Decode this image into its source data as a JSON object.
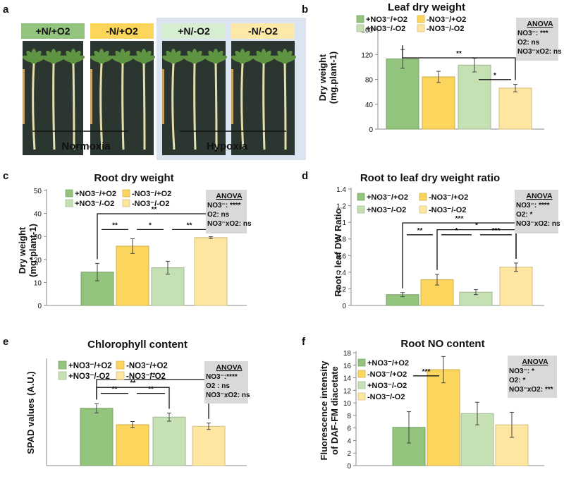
{
  "series_colors": [
    "#92c47d",
    "#fcd55c",
    "#c5e0b3",
    "#fee5a0"
  ],
  "colors": {
    "anova_box": "#d9d9d9",
    "hypoxia_bg": "#dbe4f1",
    "photo_bg": "#2c3630",
    "leaf": "#5f9443",
    "root": "#e3dfaa"
  },
  "panel_a": {
    "letter": "a",
    "labels": [
      "+N/+O2",
      "-N/+O2",
      "+N/-O2",
      "-N/-O2"
    ],
    "label_colors": [
      "#92c47d",
      "#fcd55c",
      "#d5edd0",
      "#fde9a7"
    ],
    "groups": [
      "Normoxia",
      "Hypoxia"
    ]
  },
  "chart_data": [
    {
      "id": "b",
      "letter": "b",
      "type": "bar",
      "title": "Leaf dry weight",
      "ylabel": [
        "Dry weight",
        "(mg.plant-1)"
      ],
      "ylim": [
        0,
        160
      ],
      "yticks": [
        0,
        40,
        80,
        120,
        160
      ],
      "categories": [
        "+NO3-/+O2",
        "-NO3-/+O2",
        "+NO3-/-O2",
        "-NO3-/-O2"
      ],
      "legend": [
        "+NO3⁻/+O2",
        "-NO3⁻/+O2",
        "+NO3⁻/-O2",
        "-NO3⁻/-O2"
      ],
      "values": [
        113,
        84,
        103,
        66
      ],
      "errors": [
        15,
        9,
        11,
        6
      ],
      "significance": [
        {
          "from": 3,
          "to": 2,
          "label": "*"
        },
        {
          "from": 3,
          "to": 0,
          "label": "**"
        }
      ],
      "anova": {
        "title": "ANOVA",
        "lines": [
          "NO3⁻: ***",
          "O2: ns",
          "NO3⁻xO2: ns"
        ]
      }
    },
    {
      "id": "c",
      "letter": "c",
      "type": "bar",
      "title": "Root dry weight",
      "ylabel": [
        "Dry weight",
        "(mg*plant-1)"
      ],
      "ylim": [
        0,
        50
      ],
      "yticks": [
        0,
        10,
        20,
        30,
        40,
        50
      ],
      "categories": [
        "+NO3-/+O2",
        "-NO3-/+O2",
        "+NO3-/-O2",
        "-NO3-/-O2"
      ],
      "legend": [
        "+NO3⁻/+O2",
        "-NO3⁻/+O2",
        "+NO3⁻/-O2",
        "-NO3⁻/-O2"
      ],
      "values": [
        14.5,
        25.8,
        16.4,
        29.5
      ],
      "errors": [
        3.8,
        3.2,
        2.8,
        0.4
      ],
      "significance": [
        {
          "from": 0,
          "to": 1,
          "label": "**"
        },
        {
          "from": 1,
          "to": 2,
          "label": "*"
        },
        {
          "from": 2,
          "to": 3,
          "label": "**"
        },
        {
          "from": 0,
          "to": 3,
          "label": "**"
        }
      ],
      "anova": {
        "title": "ANOVA",
        "lines": [
          "NO3⁻: ****",
          "O2: ns",
          "NO3⁻xO2: ns"
        ]
      }
    },
    {
      "id": "d",
      "letter": "d",
      "type": "bar",
      "title": "Root to leaf dry weight ratio",
      "ylabel": [
        "Root : leaf DW Ratio"
      ],
      "ylim": [
        0,
        1.4
      ],
      "yticks": [
        0,
        0.2,
        0.4,
        0.6,
        0.8,
        1,
        1.2,
        1.4
      ],
      "categories": [
        "+NO3-/+O2",
        "-NO3-/+O2",
        "+NO3-/-O2",
        "-NO3-/-O2"
      ],
      "legend": [
        "+NO3⁻/+O2",
        "-NO3⁻/+O2",
        "+NO3⁻/-O2",
        "-NO3⁻/-O2"
      ],
      "values": [
        0.13,
        0.31,
        0.16,
        0.46
      ],
      "errors": [
        0.025,
        0.065,
        0.03,
        0.05
      ],
      "significance": [
        {
          "from": 0,
          "to": 1,
          "label": "**"
        },
        {
          "from": 1,
          "to": 2,
          "label": "*"
        },
        {
          "from": 2,
          "to": 3,
          "label": "***"
        },
        {
          "from": 1,
          "to": 3,
          "label": "*"
        },
        {
          "from": 0,
          "to": 3,
          "label": "***"
        }
      ],
      "anova": {
        "title": "ANOVA",
        "lines": [
          "NO3⁻: ****",
          "O2: *",
          "NO3⁻xO2: ns"
        ]
      }
    },
    {
      "id": "e",
      "letter": "e",
      "type": "bar",
      "title": "Chlorophyll content",
      "ylabel": [
        "SPAD values (A.U.)"
      ],
      "ylim": [
        0,
        60
      ],
      "yticks": [],
      "categories": [
        "+NO3-/+O2",
        "-NO3-/+O2",
        "+NO3-/-O2",
        "-NO3-/-O2"
      ],
      "legend": [
        "+NO3⁻/+O2",
        "-NO3⁻/+O2",
        "+NO3⁻/-O2",
        "-NO3⁻/-O2"
      ],
      "values": [
        32.5,
        23.2,
        27.5,
        22.3
      ],
      "errors": [
        2.6,
        1.8,
        2.3,
        1.8
      ],
      "significance": [
        {
          "from": 0,
          "to": 1,
          "label": "**"
        },
        {
          "from": 1,
          "to": 2,
          "label": "**"
        },
        {
          "from": 0,
          "to": 2,
          "label": "**"
        },
        {
          "from": 0,
          "to": 3,
          "label": "**"
        }
      ],
      "anova": {
        "title": "ANOVA",
        "lines": [
          "NO3⁻:****",
          "O2 : ns",
          "NO3⁻xO2: ns"
        ]
      }
    },
    {
      "id": "f",
      "letter": "f",
      "type": "bar",
      "title": "Root NO content",
      "ylabel": [
        "Fluorescence intensity",
        "of DAF-FM diacetate"
      ],
      "ylim": [
        0,
        18
      ],
      "yticks": [
        0,
        2,
        4,
        6,
        8,
        10,
        12,
        14,
        16,
        18
      ],
      "categories": [
        "+NO3-/+O2",
        "-NO3-/+O2",
        "+NO3-/-O2",
        "-NO3-/-O2"
      ],
      "legend": [
        "+NO3⁻/+O2",
        "-NO3⁻/+O2",
        "+NO3⁻/-O2",
        "-NO3⁻/-O2"
      ],
      "values": [
        6.1,
        15.3,
        8.3,
        6.5
      ],
      "errors": [
        2.5,
        2.1,
        1.8,
        2.0
      ],
      "significance": [
        {
          "from": 0,
          "to": 1,
          "label": "***"
        }
      ],
      "anova": {
        "title": "ANOVA",
        "lines": [
          "NO3⁻: *",
          "O2: *",
          "NO3⁻xO2: ***"
        ]
      }
    }
  ]
}
